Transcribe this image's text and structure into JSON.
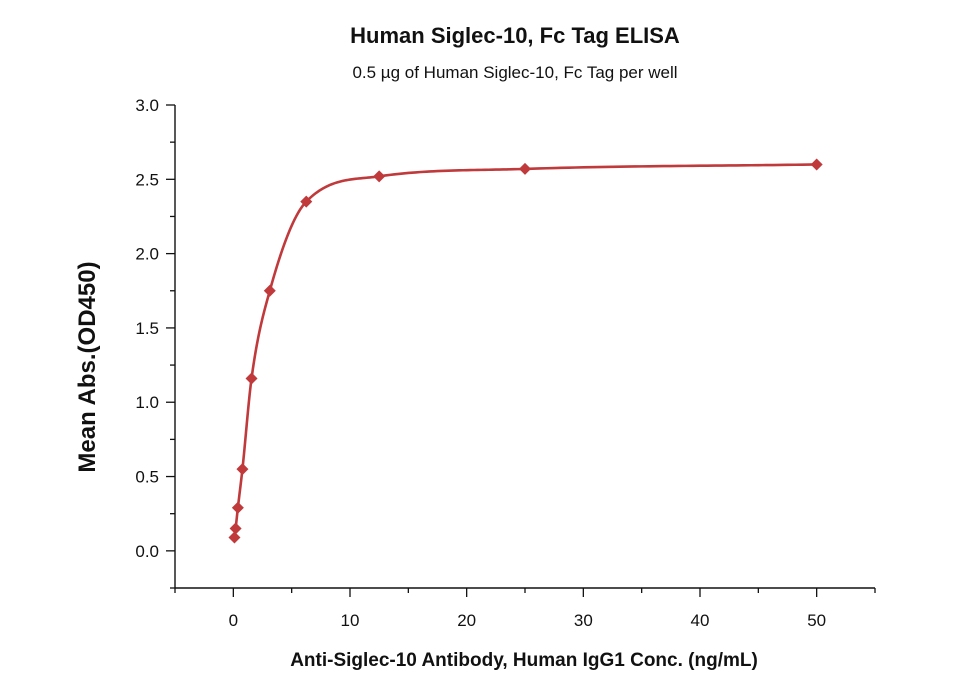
{
  "chart_data": {
    "type": "scatter",
    "title": "Human Siglec-10, Fc Tag ELISA",
    "subtitle": "0.5 µg of Human Siglec-10, Fc Tag per well",
    "xlabel": "Anti-Siglec-10 Antibody, Human IgG1 Conc. (ng/mL)",
    "ylabel": "Mean Abs.(OD450)",
    "xlim": [
      -5,
      55
    ],
    "ylim": [
      -0.25,
      3.0
    ],
    "xticks": [
      0,
      10,
      20,
      30,
      40,
      50
    ],
    "xtick_labels": [
      "0",
      "10",
      "20",
      "30",
      "40",
      "50"
    ],
    "yticks": [
      0.0,
      0.5,
      1.0,
      1.5,
      2.0,
      2.5,
      3.0
    ],
    "ytick_labels": [
      "0.0",
      "0.5",
      "1.0",
      "1.5",
      "2.0",
      "2.5",
      "3.0"
    ],
    "grid": false,
    "color": "#c0393b",
    "series": [
      {
        "marker": "diamond",
        "x": [
          0.098,
          0.195,
          0.39,
          0.78,
          1.56,
          3.125,
          6.25,
          12.5,
          25,
          50
        ],
        "y": [
          0.09,
          0.15,
          0.29,
          0.55,
          1.16,
          1.75,
          2.35,
          2.52,
          2.57,
          2.6
        ],
        "fit_curve": true
      }
    ]
  }
}
